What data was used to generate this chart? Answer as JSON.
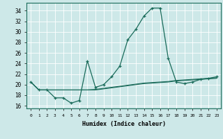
{
  "bg_color": "#cde8e8",
  "line_color": "#1a6b5a",
  "grid_color": "#ffffff",
  "xlabel": "Humidex (Indice chaleur)",
  "xlim": [
    -0.5,
    23.5
  ],
  "ylim": [
    15.5,
    35.5
  ],
  "yticks": [
    16,
    18,
    20,
    22,
    24,
    26,
    28,
    30,
    32,
    34
  ],
  "xticks": [
    0,
    1,
    2,
    3,
    4,
    5,
    6,
    7,
    8,
    9,
    10,
    11,
    12,
    13,
    14,
    15,
    16,
    17,
    18,
    19,
    20,
    21,
    22,
    23
  ],
  "main_x": [
    0,
    1,
    2,
    3,
    4,
    5,
    6,
    7,
    8,
    9,
    10,
    11,
    12,
    13,
    14,
    15,
    16,
    17,
    18,
    19,
    20,
    21,
    22,
    23
  ],
  "main_y": [
    20.5,
    19.0,
    19.0,
    17.5,
    17.5,
    16.5,
    17.0,
    24.5,
    19.5,
    20.0,
    21.5,
    23.5,
    28.5,
    30.5,
    33.0,
    34.5,
    34.5,
    25.0,
    20.5,
    20.2,
    20.5,
    21.0,
    21.2,
    21.5
  ],
  "line2_x": [
    0,
    1,
    2,
    3,
    4,
    5,
    6,
    7,
    8,
    9,
    10,
    11,
    12,
    13,
    14,
    15,
    16,
    17,
    18,
    19,
    20,
    21,
    22,
    23
  ],
  "line2_y": [
    20.5,
    19.0,
    19.0,
    19.0,
    19.0,
    19.0,
    19.0,
    19.0,
    19.1,
    19.3,
    19.5,
    19.7,
    19.9,
    20.1,
    20.3,
    20.4,
    20.5,
    20.6,
    20.8,
    20.9,
    21.0,
    21.1,
    21.2,
    21.3
  ],
  "line3_x": [
    0,
    1,
    2,
    3,
    4,
    5,
    6,
    7,
    8,
    9,
    10,
    11,
    12,
    13,
    14,
    15,
    16,
    17,
    18,
    19,
    20,
    21,
    22,
    23
  ],
  "line3_y": [
    20.5,
    19.0,
    19.0,
    19.0,
    19.0,
    19.0,
    19.0,
    19.0,
    19.0,
    19.2,
    19.4,
    19.6,
    19.8,
    20.0,
    20.2,
    20.3,
    20.4,
    20.5,
    20.7,
    20.8,
    20.9,
    21.0,
    21.1,
    21.2
  ]
}
